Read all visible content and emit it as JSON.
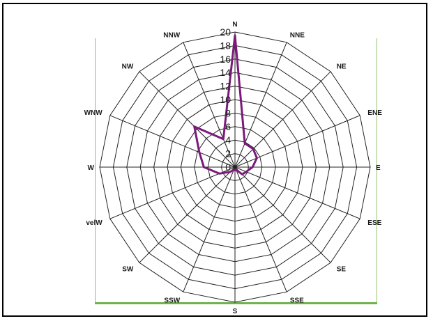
{
  "chart_data": {
    "type": "radar",
    "title": "",
    "categories": [
      "N",
      "NNE",
      "NE",
      "ENE",
      "E",
      "ESE",
      "SE",
      "SSE",
      "S",
      "SSW",
      "SW",
      "velW",
      "W",
      "WNW",
      "NW",
      "NNW"
    ],
    "series": [
      {
        "values": [
          19.5,
          3.8,
          3.8,
          3.5,
          2.6,
          1.8,
          1.5,
          0.4,
          0.5,
          0.4,
          1.0,
          2.5,
          4.6,
          5.7,
          8.5,
          4.5
        ],
        "color": "#7b1a7a"
      }
    ],
    "rlim": [
      0,
      20
    ],
    "ticks": [
      "0",
      "2",
      "4",
      "6",
      "8",
      "10",
      "12",
      "14",
      "16",
      "18",
      "20"
    ],
    "grid": true,
    "grid_color": "#222222",
    "legend": "none"
  }
}
